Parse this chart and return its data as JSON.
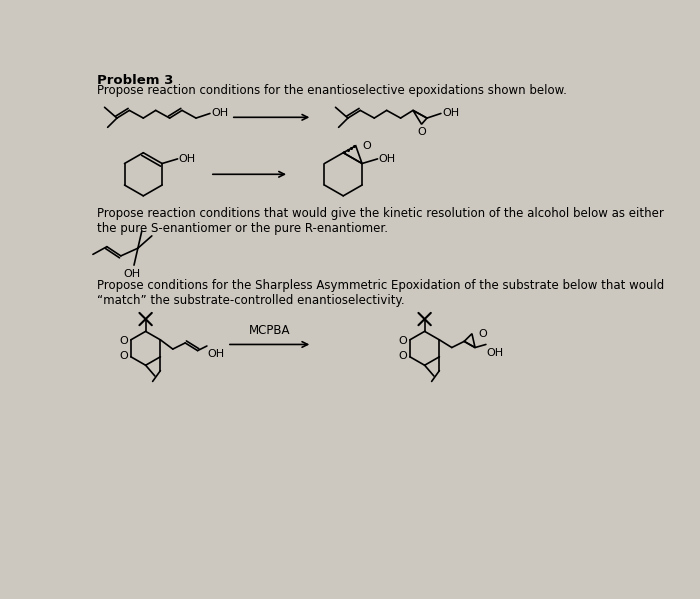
{
  "background_color": "#cdc8bf",
  "title_bold": "Problem 3",
  "subtitle": "Propose reaction conditions for the enantioselective epoxidations shown below.",
  "text2": "Propose reaction conditions that would give the kinetic resolution of the alcohol below as either\nthe pure S-enantiomer or the pure R-enantiomer.",
  "text3": "Propose conditions for the Sharpless Asymmetric Epoxidation of the substrate below that would\n“match” the substrate-controlled enantioselectivity.",
  "mcpba_label": "MCPBA",
  "font_size_title": 9.5,
  "font_size_text": 8.5,
  "fig_width": 7.0,
  "fig_height": 5.99
}
